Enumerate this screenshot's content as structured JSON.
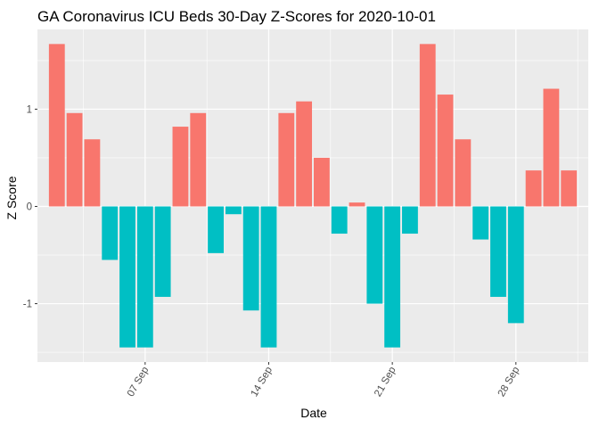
{
  "chart_data": {
    "type": "bar",
    "title": "GA Coronavirus ICU Beds 30-Day Z-Scores for 2020-10-01",
    "xlabel": "Date",
    "ylabel": "Z Score",
    "dates": [
      "2020-09-02",
      "2020-09-03",
      "2020-09-04",
      "2020-09-05",
      "2020-09-06",
      "2020-09-07",
      "2020-09-08",
      "2020-09-09",
      "2020-09-10",
      "2020-09-11",
      "2020-09-12",
      "2020-09-13",
      "2020-09-14",
      "2020-09-15",
      "2020-09-16",
      "2020-09-17",
      "2020-09-18",
      "2020-09-19",
      "2020-09-20",
      "2020-09-21",
      "2020-09-22",
      "2020-09-23",
      "2020-09-24",
      "2020-09-25",
      "2020-09-26",
      "2020-09-27",
      "2020-09-28",
      "2020-09-29",
      "2020-09-30",
      "2020-10-01"
    ],
    "values": [
      1.67,
      0.96,
      0.69,
      -0.55,
      -1.45,
      -1.45,
      -0.93,
      0.82,
      0.96,
      -0.48,
      -0.08,
      -1.07,
      -1.45,
      0.96,
      1.08,
      0.5,
      -0.28,
      0.04,
      -1.0,
      -1.45,
      -0.28,
      1.67,
      1.15,
      0.69,
      -0.34,
      -0.93,
      -1.2,
      0.37,
      1.21,
      0.37
    ],
    "positive_color": "#F8766D",
    "negative_color": "#00BFC4",
    "panel_color": "#EBEBEB",
    "grid_color": "#FFFFFF",
    "ylim": [
      -1.6,
      1.82
    ],
    "yticks": [
      -1,
      0,
      1
    ],
    "ytick_labels": [
      "-1",
      "0",
      "1"
    ],
    "xticks": [
      "2020-09-07",
      "2020-09-14",
      "2020-09-21",
      "2020-09-28"
    ],
    "xtick_labels": [
      "07 Sep",
      "14 Sep",
      "21 Sep",
      "28 Sep"
    ],
    "legend": "none",
    "grid": true
  }
}
